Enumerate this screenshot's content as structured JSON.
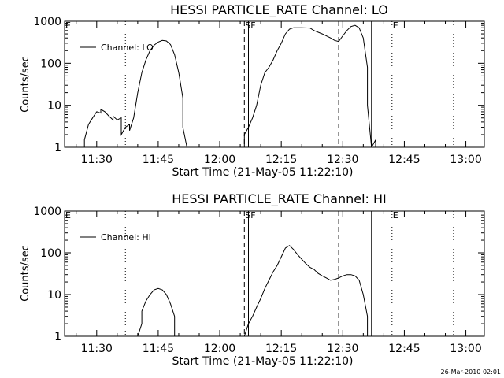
{
  "footer": {
    "timestamp": "26-Mar-2010 02:01"
  },
  "chart_data": [
    {
      "type": "line",
      "title": "HESSI PARTICLE_RATE Channel: LO",
      "xlabel": "Start Time (21-May-05 11:22:10)",
      "ylabel": "Counts/sec",
      "yscale": "log",
      "ylim": [
        1,
        1000
      ],
      "xlim_minutes": [
        682.17,
        784.5
      ],
      "x_ticks": [
        "11:30",
        "11:45",
        "12:00",
        "12:15",
        "12:30",
        "12:45",
        "13:00"
      ],
      "y_ticks": [
        "1",
        "10",
        "100",
        "1000"
      ],
      "legend": {
        "label": "Channel: LO",
        "position": "top-left"
      },
      "markers": {
        "dotted_times": [
          "11:37",
          "12:42",
          "12:57"
        ],
        "dashed_times": [
          "12:06",
          "12:29"
        ],
        "solid_times": [
          "12:07",
          "12:37"
        ],
        "labels": [
          {
            "text": "SF",
            "time": "12:06"
          },
          {
            "text": "E",
            "time": "12:42"
          }
        ]
      },
      "series": [
        {
          "name": "Channel: LO",
          "segments": [
            [
              [
                "11:27",
                1.0
              ],
              [
                "11:27",
                1.5
              ],
              [
                "11:28",
                3.5
              ],
              [
                "11:29",
                5.0
              ],
              [
                "11:30",
                7.0
              ],
              [
                "11:31",
                6.5
              ],
              [
                "11:31",
                8.0
              ],
              [
                "11:32",
                7.0
              ],
              [
                "11:33",
                5.5
              ],
              [
                "11:34",
                4.5
              ],
              [
                "11:34",
                5.5
              ],
              [
                "11:35",
                4.5
              ],
              [
                "11:36",
                5.0
              ],
              [
                "11:36",
                2.0
              ],
              [
                "11:37",
                3.0
              ],
              [
                "11:38",
                3.5
              ],
              [
                "11:38",
                2.5
              ],
              [
                "11:39",
                5.0
              ],
              [
                "11:40",
                20
              ],
              [
                "11:41",
                60
              ],
              [
                "11:42",
                120
              ],
              [
                "11:43",
                200
              ],
              [
                "11:44",
                270
              ],
              [
                "11:45",
                320
              ],
              [
                "11:46",
                350
              ],
              [
                "11:47",
                340
              ],
              [
                "11:48",
                280
              ],
              [
                "11:49",
                160
              ],
              [
                "11:50",
                60
              ],
              [
                "11:51",
                15
              ],
              [
                "11:51",
                3
              ],
              [
                "11:52",
                1.0
              ]
            ],
            [
              [
                "12:06",
                1.0
              ],
              [
                "12:06",
                2.0
              ],
              [
                "12:07",
                3.0
              ],
              [
                "12:08",
                5.0
              ],
              [
                "12:09",
                10
              ],
              [
                "12:10",
                30
              ],
              [
                "12:11",
                60
              ],
              [
                "12:12",
                80
              ],
              [
                "12:13",
                120
              ],
              [
                "12:14",
                200
              ],
              [
                "12:15",
                300
              ],
              [
                "12:16",
                500
              ],
              [
                "12:17",
                650
              ],
              [
                "12:18",
                700
              ],
              [
                "12:20",
                700
              ],
              [
                "12:22",
                690
              ],
              [
                "12:23",
                600
              ],
              [
                "12:25",
                500
              ],
              [
                "12:27",
                400
              ],
              [
                "12:28",
                350
              ],
              [
                "12:29",
                330
              ],
              [
                "12:30",
                450
              ],
              [
                "12:31",
                600
              ],
              [
                "12:32",
                750
              ],
              [
                "12:33",
                800
              ],
              [
                "12:34",
                700
              ],
              [
                "12:35",
                400
              ],
              [
                "12:36",
                80
              ],
              [
                "12:36",
                10
              ],
              [
                "12:37",
                1.0
              ]
            ],
            [
              [
                "12:37",
                1.0
              ],
              [
                "12:38",
                1.5
              ],
              [
                "12:38",
                1.0
              ]
            ]
          ]
        }
      ]
    },
    {
      "type": "line",
      "title": "HESSI PARTICLE_RATE Channel: HI",
      "xlabel": "Start Time (21-May-05 11:22:10)",
      "ylabel": "Counts/sec",
      "yscale": "log",
      "ylim": [
        1,
        1000
      ],
      "xlim_minutes": [
        682.17,
        784.5
      ],
      "x_ticks": [
        "11:30",
        "11:45",
        "12:00",
        "12:15",
        "12:30",
        "12:45",
        "13:00"
      ],
      "y_ticks": [
        "1",
        "10",
        "100",
        "1000"
      ],
      "legend": {
        "label": "Channel: HI",
        "position": "top-left"
      },
      "markers": {
        "dotted_times": [
          "11:37",
          "12:42",
          "12:57"
        ],
        "dashed_times": [
          "12:06",
          "12:29"
        ],
        "solid_times": [
          "12:07",
          "12:37"
        ],
        "labels": [
          {
            "text": "SF",
            "time": "12:06"
          },
          {
            "text": "E",
            "time": "12:42"
          }
        ]
      },
      "series": [
        {
          "name": "Channel: HI",
          "segments": [
            [
              [
                "11:40",
                1.0
              ],
              [
                "11:41",
                2.0
              ],
              [
                "11:41",
                4.0
              ],
              [
                "11:42",
                7.0
              ],
              [
                "11:43",
                10
              ],
              [
                "11:44",
                13
              ],
              [
                "11:45",
                14
              ],
              [
                "11:46",
                13
              ],
              [
                "11:47",
                10
              ],
              [
                "11:48",
                6.0
              ],
              [
                "11:49",
                3.0
              ],
              [
                "11:49",
                1.0
              ]
            ],
            [
              [
                "12:06",
                1.0
              ],
              [
                "12:07",
                2.0
              ],
              [
                "12:08",
                3.0
              ],
              [
                "12:09",
                5.0
              ],
              [
                "12:10",
                8.0
              ],
              [
                "12:11",
                14
              ],
              [
                "12:12",
                22
              ],
              [
                "12:13",
                35
              ],
              [
                "12:14",
                50
              ],
              [
                "12:15",
                80
              ],
              [
                "12:16",
                130
              ],
              [
                "12:17",
                150
              ],
              [
                "12:18",
                120
              ],
              [
                "12:19",
                90
              ],
              [
                "12:20",
                70
              ],
              [
                "12:21",
                55
              ],
              [
                "12:22",
                45
              ],
              [
                "12:23",
                40
              ],
              [
                "12:24",
                32
              ],
              [
                "12:25",
                28
              ],
              [
                "12:26",
                25
              ],
              [
                "12:27",
                22
              ],
              [
                "12:28",
                23
              ],
              [
                "12:29",
                25
              ],
              [
                "12:30",
                28
              ],
              [
                "12:31",
                30
              ],
              [
                "12:32",
                30
              ],
              [
                "12:33",
                28
              ],
              [
                "12:34",
                22
              ],
              [
                "12:35",
                10
              ],
              [
                "12:36",
                3.0
              ],
              [
                "12:36",
                1.0
              ]
            ]
          ]
        }
      ]
    }
  ]
}
